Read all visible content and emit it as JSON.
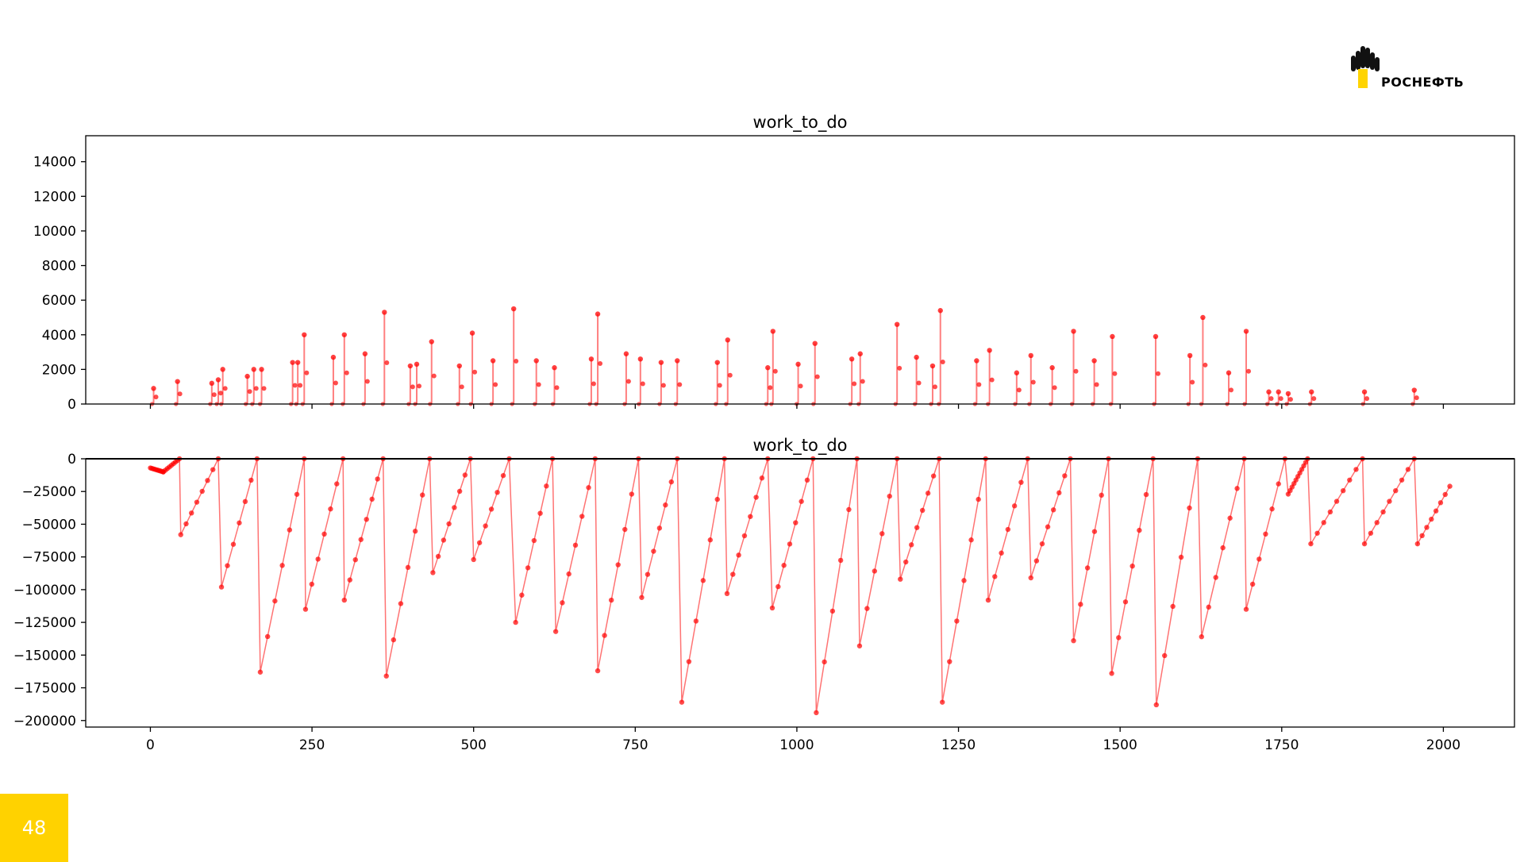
{
  "logo": {
    "text": "РОСНЕФТЬ",
    "colors": {
      "drops": "#111111",
      "bar": "#FFD400"
    }
  },
  "page": {
    "number": "48",
    "badge_color": "#FFD200"
  },
  "chart_data": [
    {
      "type": "line",
      "title": "work_to_do",
      "xlabel": "",
      "ylabel": "",
      "xlim": [
        -100,
        2110
      ],
      "ylim": [
        0,
        15500
      ],
      "yticks": [
        0,
        2000,
        4000,
        6000,
        8000,
        10000,
        12000,
        14000
      ],
      "xticks": [
        0,
        250,
        500,
        750,
        1000,
        1250,
        1500,
        1750,
        2000
      ],
      "show_xtick_labels": false,
      "series_color": "#ff0000",
      "style": "markers with vertical stems to zero",
      "grid": false,
      "points": [
        [
          5,
          900
        ],
        [
          42,
          1300
        ],
        [
          95,
          1200
        ],
        [
          105,
          1400
        ],
        [
          112,
          2000
        ],
        [
          150,
          1600
        ],
        [
          160,
          2000
        ],
        [
          172,
          2000
        ],
        [
          220,
          2400
        ],
        [
          228,
          2400
        ],
        [
          238,
          4000
        ],
        [
          283,
          2700
        ],
        [
          300,
          4000
        ],
        [
          332,
          2900
        ],
        [
          362,
          5300
        ],
        [
          402,
          2200
        ],
        [
          412,
          2300
        ],
        [
          435,
          3600
        ],
        [
          478,
          2200
        ],
        [
          498,
          4100
        ],
        [
          530,
          2500
        ],
        [
          562,
          5500
        ],
        [
          597,
          2500
        ],
        [
          625,
          2100
        ],
        [
          682,
          2600
        ],
        [
          692,
          5200
        ],
        [
          736,
          2900
        ],
        [
          758,
          2600
        ],
        [
          790,
          2400
        ],
        [
          815,
          2500
        ],
        [
          877,
          2400
        ],
        [
          893,
          3700
        ],
        [
          955,
          2100
        ],
        [
          963,
          4200
        ],
        [
          1002,
          2300
        ],
        [
          1028,
          3500
        ],
        [
          1085,
          2600
        ],
        [
          1098,
          2900
        ],
        [
          1155,
          4600
        ],
        [
          1185,
          2700
        ],
        [
          1210,
          2200
        ],
        [
          1222,
          5400
        ],
        [
          1278,
          2500
        ],
        [
          1298,
          3100
        ],
        [
          1340,
          1800
        ],
        [
          1362,
          2800
        ],
        [
          1395,
          2100
        ],
        [
          1428,
          4200
        ],
        [
          1460,
          2500
        ],
        [
          1488,
          3900
        ],
        [
          1555,
          3900
        ],
        [
          1608,
          2800
        ],
        [
          1628,
          5000
        ],
        [
          1668,
          1800
        ],
        [
          1695,
          4200
        ],
        [
          1730,
          700
        ],
        [
          1745,
          700
        ],
        [
          1760,
          600
        ],
        [
          1796,
          700
        ],
        [
          1878,
          700
        ],
        [
          1955,
          800
        ]
      ]
    },
    {
      "type": "line",
      "title": "work_to_do",
      "xlabel": "",
      "ylabel": "",
      "xlim": [
        -100,
        2110
      ],
      "ylim": [
        -205000,
        0
      ],
      "yticks": [
        0,
        -25000,
        -50000,
        -75000,
        -100000,
        -125000,
        -150000,
        -175000,
        -200000
      ],
      "ytick_labels": [
        "0",
        "−25000",
        "−50000",
        "−75000",
        "−100000",
        "−125000",
        "−150000",
        "−175000",
        "−200000"
      ],
      "xticks": [
        0,
        250,
        500,
        750,
        1000,
        1250,
        1500,
        1750,
        2000
      ],
      "xtick_labels": [
        "0",
        "250",
        "500",
        "750",
        "1000",
        "1250",
        "1500",
        "1750",
        "2000"
      ],
      "series_color": "#ff0000",
      "style": "sawtooth: drops to a minimum then recovers linearly to zero",
      "grid": false,
      "zero_line": true,
      "segments": [
        [
          0,
          -7000,
          20,
          -10000,
          2
        ],
        [
          20,
          -10000,
          45,
          0,
          3
        ],
        [
          47,
          -58000,
          105,
          0,
          8
        ],
        [
          110,
          -98000,
          165,
          0,
          9
        ],
        [
          170,
          -163000,
          238,
          0,
          11
        ],
        [
          240,
          -115000,
          298,
          0,
          9
        ],
        [
          300,
          -108000,
          360,
          0,
          8
        ],
        [
          365,
          -166000,
          432,
          0,
          10
        ],
        [
          437,
          -87000,
          495,
          0,
          8
        ],
        [
          500,
          -77000,
          555,
          0,
          8
        ],
        [
          565,
          -125000,
          622,
          0,
          9
        ],
        [
          627,
          -132000,
          688,
          0,
          9
        ],
        [
          692,
          -162000,
          755,
          0,
          10
        ],
        [
          760,
          -106000,
          815,
          0,
          8
        ],
        [
          822,
          -186000,
          888,
          0,
          11
        ],
        [
          892,
          -103000,
          955,
          0,
          9
        ],
        [
          962,
          -114000,
          1025,
          0,
          9
        ],
        [
          1030,
          -194000,
          1093,
          0,
          12
        ],
        [
          1097,
          -143000,
          1155,
          0,
          10
        ],
        [
          1160,
          -92000,
          1220,
          0,
          8
        ],
        [
          1225,
          -186000,
          1292,
          0,
          11
        ],
        [
          1296,
          -108000,
          1357,
          0,
          9
        ],
        [
          1362,
          -91000,
          1423,
          0,
          8
        ],
        [
          1428,
          -139000,
          1482,
          0,
          10
        ],
        [
          1487,
          -164000,
          1551,
          0,
          10
        ],
        [
          1556,
          -188000,
          1620,
          0,
          11
        ],
        [
          1626,
          -136000,
          1692,
          0,
          10
        ],
        [
          1695,
          -115000,
          1755,
          0,
          9
        ],
        [
          1760,
          -27000,
          1790,
          0,
          3
        ],
        [
          1795,
          -65000,
          1875,
          0,
          9
        ],
        [
          1878,
          -65000,
          1955,
          0,
          9
        ],
        [
          1960,
          -65000,
          2010,
          -21000,
          7
        ]
      ]
    }
  ]
}
